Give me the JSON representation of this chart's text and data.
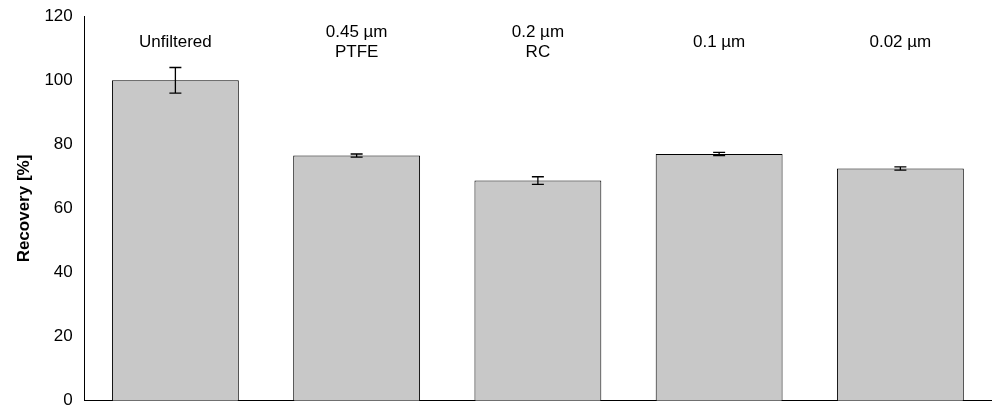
{
  "chart_data": {
    "type": "bar",
    "ylabel": "Recovery [%]",
    "categories": [
      "Unfiltered",
      "0.45 µm PTFE",
      "0.2 µm RC",
      "0.1 µm",
      "0.02 µm"
    ],
    "values": [
      100,
      76.5,
      68.7,
      77,
      72.5
    ],
    "errors": [
      4,
      0.5,
      1.2,
      0.5,
      0.5
    ],
    "color": "#c8c8c8",
    "ylim": [
      0,
      120
    ],
    "yticks": [
      0,
      20,
      40,
      60,
      80,
      100,
      120
    ],
    "grid": false,
    "legend": false
  }
}
